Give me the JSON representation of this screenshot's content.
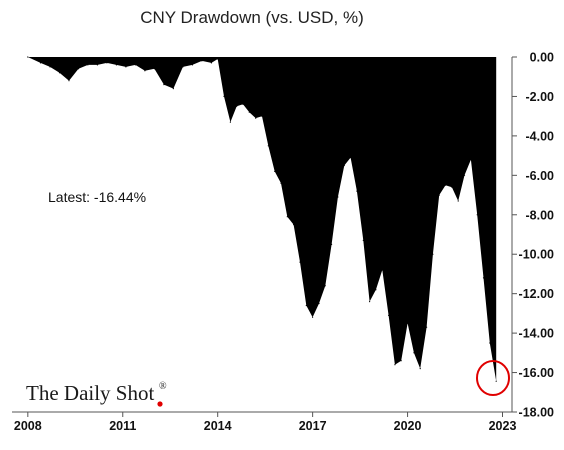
{
  "chart_data": {
    "type": "area",
    "title": "CNY Drawdown (vs. USD, %)",
    "xlabel": "",
    "ylabel": "",
    "ylim": [
      -18,
      0
    ],
    "y_ticks": [
      "0.00",
      "-2.00",
      "-4.00",
      "-6.00",
      "-8.00",
      "-10.00",
      "-12.00",
      "-14.00",
      "-16.00",
      "-18.00"
    ],
    "x_ticks": [
      "2008",
      "2011",
      "2014",
      "2017",
      "2020",
      "2023"
    ],
    "annotation": "Latest:  -16.44%",
    "latest_value": -16.44,
    "grid": false,
    "fill_color": "#000000",
    "highlight_color": "#e00000",
    "x": [
      2008.0,
      2008.4,
      2008.7,
      2009.0,
      2009.3,
      2009.6,
      2009.9,
      2010.2,
      2010.5,
      2010.8,
      2011.1,
      2011.4,
      2011.7,
      2012.0,
      2012.3,
      2012.6,
      2012.9,
      2013.2,
      2013.5,
      2013.8,
      2014.0,
      2014.2,
      2014.4,
      2014.6,
      2014.8,
      2015.0,
      2015.2,
      2015.4,
      2015.6,
      2015.8,
      2016.0,
      2016.2,
      2016.4,
      2016.6,
      2016.8,
      2017.0,
      2017.2,
      2017.4,
      2017.6,
      2017.8,
      2018.0,
      2018.2,
      2018.4,
      2018.6,
      2018.8,
      2019.0,
      2019.2,
      2019.4,
      2019.6,
      2019.8,
      2020.0,
      2020.2,
      2020.4,
      2020.6,
      2020.8,
      2021.0,
      2021.2,
      2021.4,
      2021.6,
      2021.8,
      2022.0,
      2022.2,
      2022.4,
      2022.6,
      2022.8
    ],
    "values": [
      0.0,
      -0.3,
      -0.5,
      -0.8,
      -1.2,
      -0.6,
      -0.4,
      -0.4,
      -0.3,
      -0.4,
      -0.5,
      -0.4,
      -0.7,
      -0.6,
      -1.4,
      -1.6,
      -0.5,
      -0.4,
      -0.2,
      -0.3,
      -0.1,
      -2.0,
      -3.3,
      -2.5,
      -2.4,
      -2.8,
      -3.1,
      -3.0,
      -4.5,
      -5.8,
      -6.4,
      -8.1,
      -8.5,
      -10.4,
      -12.6,
      -13.2,
      -12.5,
      -11.6,
      -9.5,
      -7.1,
      -5.5,
      -5.1,
      -6.8,
      -9.3,
      -12.4,
      -11.8,
      -10.8,
      -13.1,
      -15.6,
      -15.4,
      -13.5,
      -15.0,
      -15.8,
      -13.7,
      -10.0,
      -7.0,
      -6.5,
      -6.6,
      -7.3,
      -6.0,
      -5.2,
      -8.0,
      -11.2,
      -14.5,
      -16.44
    ]
  }
}
